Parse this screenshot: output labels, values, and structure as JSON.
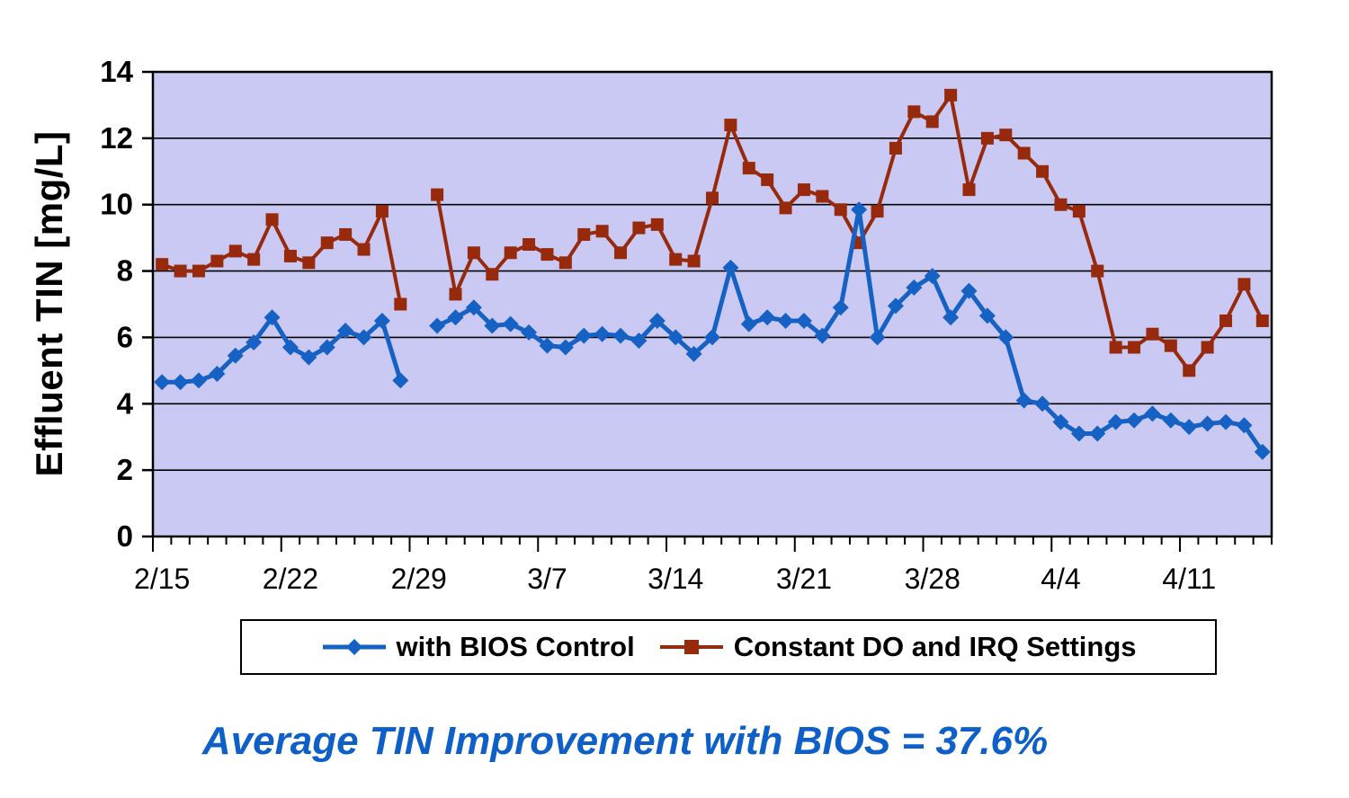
{
  "colors": {
    "plot_background": "#C9C9F4",
    "gridline": "#000000",
    "axis": "#000000",
    "tick_label": "#000000",
    "caption_blue": "#0E5FC8"
  },
  "caption": {
    "text": "Average TIN Improvement with BIOS = 37.6%"
  },
  "chart_data": {
    "type": "line",
    "title": "",
    "xlabel": "",
    "ylabel": "Effluent TIN [mg/L]",
    "ylim": [
      0,
      14
    ],
    "y_ticks": [
      0,
      2,
      4,
      6,
      8,
      10,
      12,
      14
    ],
    "grid": "horizontal",
    "legend_position": "bottom",
    "x_tick_labels": [
      "2/15",
      "2/22",
      "2/29",
      "3/7",
      "3/14",
      "3/21",
      "3/28",
      "4/4",
      "4/11"
    ],
    "x_tick_label_indices": [
      0,
      7,
      14,
      21,
      28,
      35,
      42,
      49,
      56
    ],
    "categories": [
      "2/15",
      "2/16",
      "2/17",
      "2/18",
      "2/19",
      "2/20",
      "2/21",
      "2/22",
      "2/23",
      "2/24",
      "2/25",
      "2/26",
      "2/27",
      "2/28",
      "2/29",
      "3/1",
      "3/2",
      "3/3",
      "3/4",
      "3/5",
      "3/6",
      "3/7",
      "3/8",
      "3/9",
      "3/10",
      "3/11",
      "3/12",
      "3/13",
      "3/14",
      "3/15",
      "3/16",
      "3/17",
      "3/18",
      "3/19",
      "3/20",
      "3/21",
      "3/22",
      "3/23",
      "3/24",
      "3/25",
      "3/26",
      "3/27",
      "3/28",
      "3/29",
      "3/30",
      "3/31",
      "4/1",
      "4/2",
      "4/3",
      "4/4",
      "4/5",
      "4/6",
      "4/7",
      "4/8",
      "4/9",
      "4/10",
      "4/11",
      "4/12",
      "4/13",
      "4/14",
      "4/15"
    ],
    "series": [
      {
        "name": "Constant DO and IRQ Settings",
        "color": "#97290C",
        "marker": "square",
        "values": [
          8.2,
          8.0,
          8.0,
          8.3,
          8.6,
          8.35,
          9.55,
          8.45,
          8.25,
          8.85,
          9.1,
          8.65,
          9.8,
          7.0,
          null,
          10.3,
          7.3,
          8.55,
          7.9,
          8.55,
          8.8,
          8.5,
          8.25,
          9.1,
          9.2,
          8.55,
          9.3,
          9.4,
          8.35,
          8.3,
          10.2,
          12.4,
          11.1,
          10.75,
          9.9,
          10.45,
          10.25,
          9.85,
          8.85,
          9.8,
          11.7,
          12.8,
          12.5,
          13.3,
          10.45,
          12.0,
          12.1,
          11.55,
          11.0,
          10.0,
          9.8,
          8.0,
          5.7,
          5.7,
          6.1,
          5.75,
          5.0,
          5.7,
          6.5,
          7.6,
          6.5
        ]
      },
      {
        "name": "with BIOS Control",
        "color": "#1661C4",
        "marker": "diamond",
        "values": [
          4.65,
          4.65,
          4.7,
          4.9,
          5.45,
          5.85,
          6.6,
          5.7,
          5.4,
          5.7,
          6.2,
          6.0,
          6.5,
          4.7,
          null,
          6.35,
          6.6,
          6.9,
          6.35,
          6.4,
          6.15,
          5.75,
          5.7,
          6.05,
          6.1,
          6.05,
          5.9,
          6.5,
          6.0,
          5.5,
          6.0,
          8.1,
          6.4,
          6.6,
          6.5,
          6.5,
          6.05,
          6.9,
          9.85,
          6.0,
          6.95,
          7.5,
          7.85,
          6.6,
          7.4,
          6.65,
          6.0,
          4.1,
          4.0,
          3.45,
          3.1,
          3.1,
          3.45,
          3.5,
          3.7,
          3.5,
          3.3,
          3.4,
          3.45,
          3.35,
          2.55
        ]
      }
    ]
  }
}
